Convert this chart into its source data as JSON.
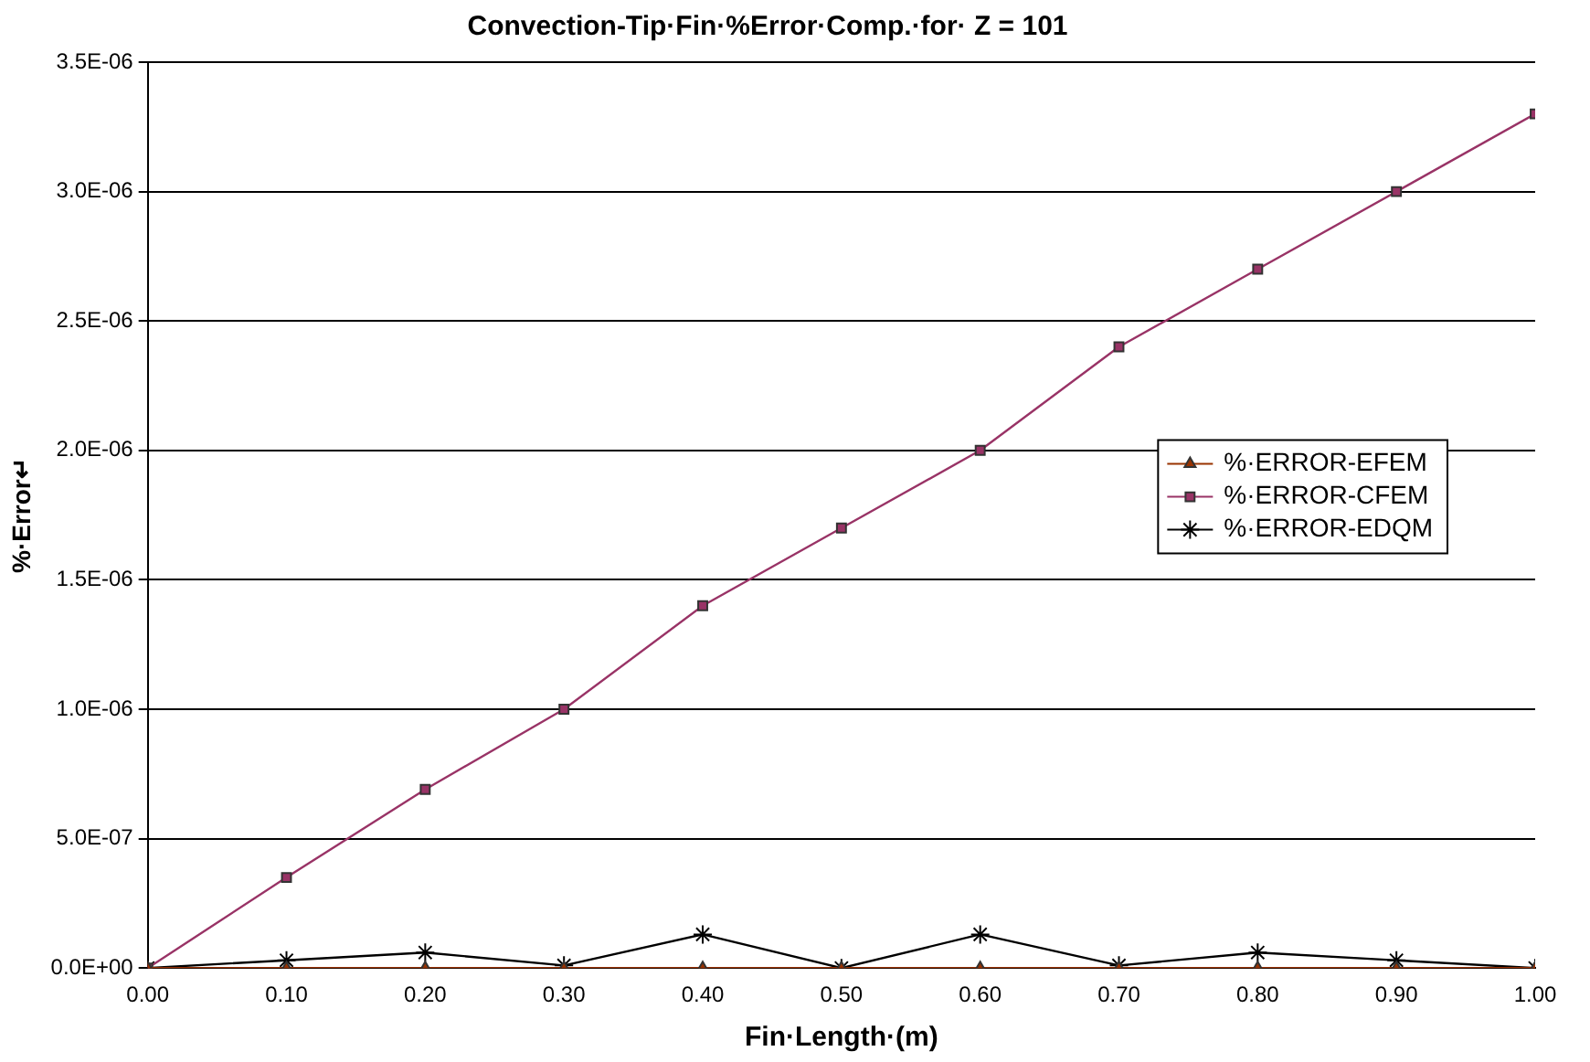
{
  "chart_data": {
    "type": "line",
    "title": "Convection-Tip·Fin·%Error·Comp.·for· Z = 101",
    "xlabel": "Fin·Length·(m)",
    "ylabel": "%·Error↵",
    "x": [
      0,
      0.1,
      0.2,
      0.3,
      0.4,
      0.5,
      0.6,
      0.7,
      0.8,
      0.9,
      1.0
    ],
    "series": [
      {
        "name": "%·ERROR-EFEM",
        "color": "#993300",
        "marker": "triangle",
        "values": [
          0,
          0,
          0,
          0,
          0,
          0,
          0,
          0,
          0,
          0,
          0
        ]
      },
      {
        "name": "%·ERROR-CFEM",
        "color": "#993366",
        "marker": "square",
        "values": [
          0,
          3.5e-07,
          6.9e-07,
          1e-06,
          1.4e-06,
          1.7e-06,
          2e-06,
          2.4e-06,
          2.7e-06,
          3e-06,
          3.3e-06
        ]
      },
      {
        "name": "%·ERROR-EDQM",
        "color": "#000000",
        "marker": "cross",
        "values": [
          0,
          3e-08,
          6e-08,
          1e-08,
          1.3e-07,
          0,
          1.3e-07,
          1e-08,
          6e-08,
          3e-08,
          0
        ]
      }
    ],
    "xlim": [
      0,
      1.0
    ],
    "xticks": [
      {
        "value": 0,
        "label": "0.00"
      },
      {
        "value": 0.1,
        "label": "0.10"
      },
      {
        "value": 0.2,
        "label": "0.20"
      },
      {
        "value": 0.3,
        "label": "0.30"
      },
      {
        "value": 0.4,
        "label": "0.40"
      },
      {
        "value": 0.5,
        "label": "0.50"
      },
      {
        "value": 0.6,
        "label": "0.60"
      },
      {
        "value": 0.7,
        "label": "0.70"
      },
      {
        "value": 0.8,
        "label": "0.80"
      },
      {
        "value": 0.9,
        "label": "0.90"
      },
      {
        "value": 1.0,
        "label": "1.00"
      }
    ],
    "ylim": [
      0,
      3.5e-06
    ],
    "yticks": [
      {
        "value": 0,
        "label": "0.0E+00"
      },
      {
        "value": 5e-07,
        "label": "5.0E-07"
      },
      {
        "value": 1e-06,
        "label": "1.0E-06"
      },
      {
        "value": 1.5e-06,
        "label": "1.5E-06"
      },
      {
        "value": 2e-06,
        "label": "2.0E-06"
      },
      {
        "value": 2.5e-06,
        "label": "2.5E-06"
      },
      {
        "value": 3e-06,
        "label": "3.0E-06"
      },
      {
        "value": 3.5e-06,
        "label": "3.5E-06"
      }
    ],
    "grid": "y",
    "legend": "right",
    "line_style": "solid"
  }
}
